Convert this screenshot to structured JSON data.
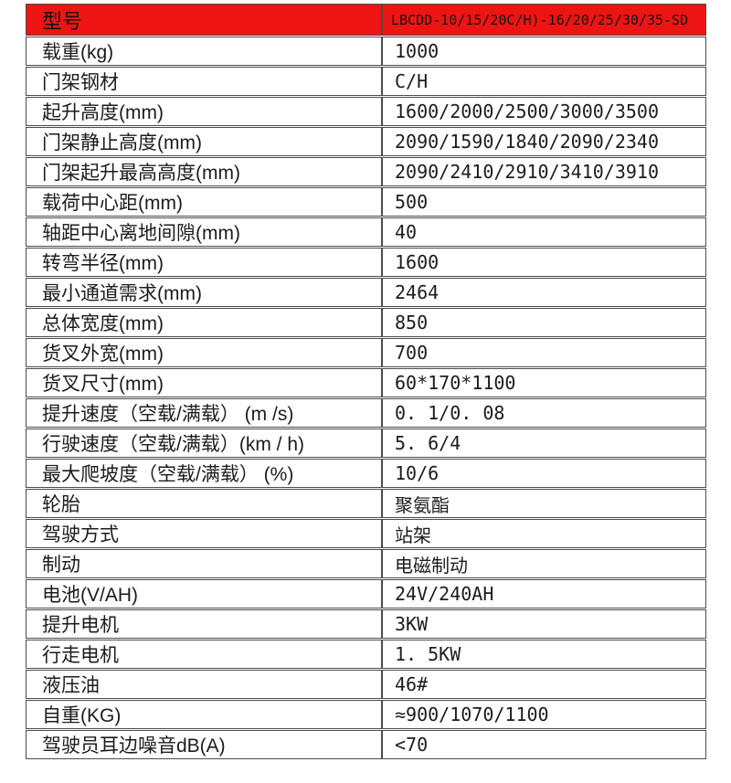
{
  "table": {
    "accent_color": "#ee1414",
    "header": {
      "label": "型号",
      "value": "LBCDD-10/15/20C/H)-16/20/25/30/35-SD"
    },
    "rows": [
      {
        "label": "载重(kg)",
        "value": "1000"
      },
      {
        "label": "门架钢材",
        "value": "C/H"
      },
      {
        "label": "起升高度(mm)",
        "value": "1600/2000/2500/3000/3500"
      },
      {
        "label": "门架静止高度(mm)",
        "value": "2090/1590/1840/2090/2340"
      },
      {
        "label": "门架起升最高高度(mm)",
        "value": "2090/2410/2910/3410/3910"
      },
      {
        "label": "载荷中心距(mm)",
        "value": "500"
      },
      {
        "label": "轴距中心离地间隙(mm)",
        "value": "40"
      },
      {
        "label": "转弯半径(mm)",
        "value": "1600"
      },
      {
        "label": "最小通道需求(mm)",
        "value": "2464"
      },
      {
        "label": "总体宽度(mm)",
        "value": "850"
      },
      {
        "label": "货叉外宽(mm)",
        "value": "700"
      },
      {
        "label": "货叉尺寸(mm)",
        "value": "60*170*1100"
      },
      {
        "label": "提升速度（空载/满载） (m /s)",
        "value": "0. 1/0. 08"
      },
      {
        "label": "行驶速度（空载/满载）(km / h)",
        "value": "5. 6/4"
      },
      {
        "label": "最大爬坡度（空载/满载） (%)",
        "value": "10/6"
      },
      {
        "label": "轮胎",
        "value": "聚氨酯"
      },
      {
        "label": "驾驶方式",
        "value": "站架"
      },
      {
        "label": "制动",
        "value": "电磁制动"
      },
      {
        "label": "电池(V/AH)",
        "value": "24V/240AH"
      },
      {
        "label": "提升电机",
        "value": "3KW"
      },
      {
        "label": "行走电机",
        "value": "1. 5KW"
      },
      {
        "label": "液压油",
        "value": "46#"
      },
      {
        "label": "自重(KG)",
        "value": "≈900/1070/1100"
      },
      {
        "label": "驾驶员耳边噪音dB(A)",
        "value": "<70"
      }
    ]
  }
}
